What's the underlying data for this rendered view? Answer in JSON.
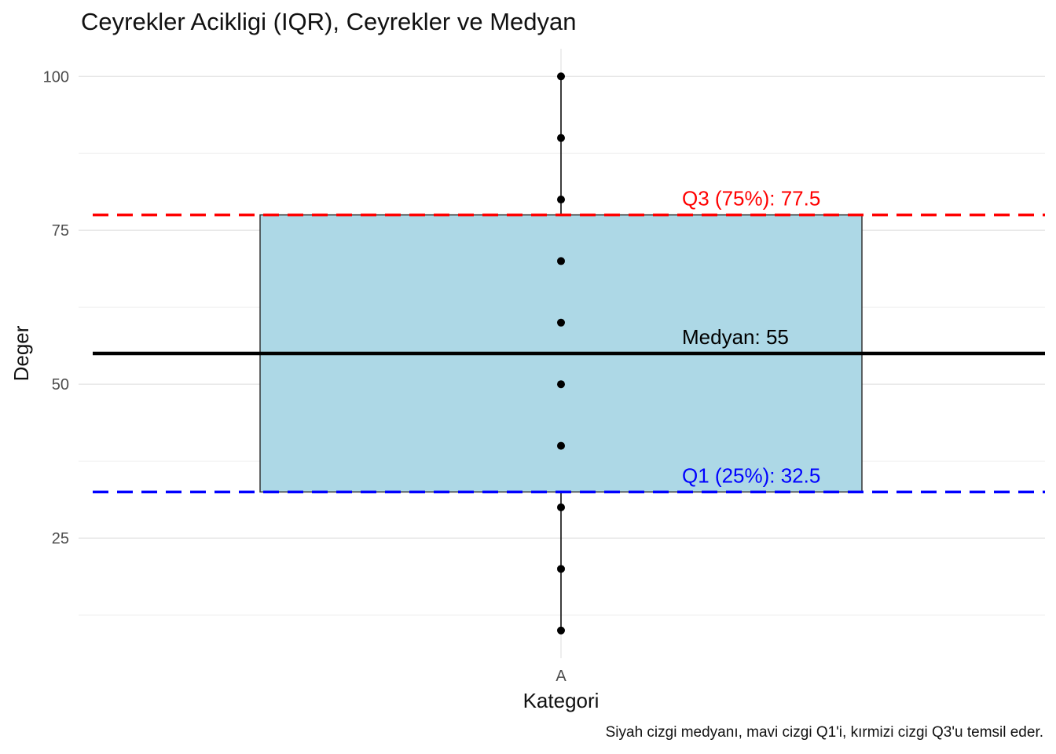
{
  "chart_data": {
    "type": "box",
    "title": "Ceyrekler Acikligi (IQR), Ceyrekler ve Medyan",
    "xlabel": "Kategori",
    "ylabel": "Deger",
    "caption": "Siyah cizgi medyanı, mavi cizgi Q1'i, kırmizi cizgi Q3'u temsil eder.",
    "categories": [
      "A"
    ],
    "ylim": [
      5.5,
      104.5
    ],
    "yticks": [
      25,
      50,
      75,
      100
    ],
    "points": [
      10,
      20,
      30,
      40,
      50,
      60,
      70,
      80,
      90,
      100
    ],
    "box": {
      "q1": 32.5,
      "median": 55,
      "q3": 77.5,
      "whisker_low": 10,
      "whisker_high": 100
    },
    "reference_lines": [
      {
        "name": "Q3",
        "value": 77.5,
        "label": "Q3 (75%): 77.5",
        "color": "#ff0000",
        "style": "dashed"
      },
      {
        "name": "Medyan",
        "value": 55,
        "label": "Medyan: 55",
        "color": "#000000",
        "style": "solid"
      },
      {
        "name": "Q1",
        "value": 32.5,
        "label": "Q1 (25%): 32.5",
        "color": "#0000ff",
        "style": "dashed"
      }
    ],
    "box_fill": "#add8e6",
    "grid": true
  }
}
